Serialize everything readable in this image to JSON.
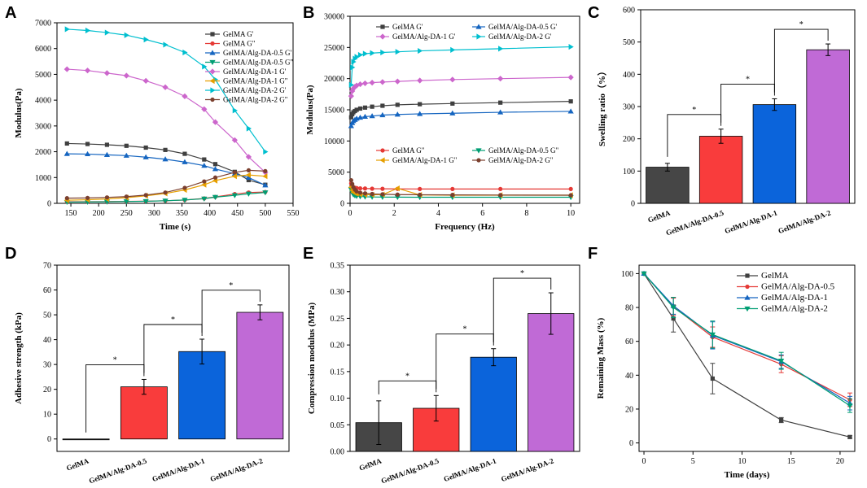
{
  "chart_data": [
    {
      "panel": "A",
      "type": "line",
      "xlabel": "Time (s)",
      "ylabel": "Modulus(Pa)",
      "xlim": [
        125,
        550
      ],
      "ylim": [
        0,
        7000
      ],
      "xticks": [
        150,
        200,
        250,
        300,
        350,
        400,
        450,
        500,
        550
      ],
      "yticks": [
        0,
        1000,
        2000,
        3000,
        4000,
        5000,
        6000,
        7000
      ],
      "x": [
        143,
        180,
        215,
        250,
        285,
        320,
        355,
        390,
        410,
        445,
        470,
        500
      ],
      "series": [
        {
          "name": "GelMA G'",
          "color": "#404040",
          "marker": "square",
          "values": [
            2320,
            2300,
            2270,
            2230,
            2160,
            2070,
            1920,
            1700,
            1520,
            1220,
            900,
            720
          ]
        },
        {
          "name": "GelMA G\"",
          "color": "#e53935",
          "marker": "circle",
          "values": [
            60,
            65,
            70,
            75,
            85,
            100,
            130,
            190,
            250,
            360,
            420,
            440
          ]
        },
        {
          "name": "GelMA/Alg-DA-0.5 G'",
          "color": "#1565c0",
          "marker": "triangle-up",
          "values": [
            1920,
            1910,
            1880,
            1850,
            1790,
            1710,
            1600,
            1460,
            1330,
            1150,
            1000,
            700
          ]
        },
        {
          "name": "GelMA/Alg-DA-0.5 G\"",
          "color": "#009e73",
          "marker": "triangle-down",
          "values": [
            50,
            55,
            60,
            70,
            80,
            100,
            130,
            180,
            240,
            310,
            370,
            420
          ]
        },
        {
          "name": "GelMA/Alg-DA-1 G'",
          "color": "#cc66cc",
          "marker": "diamond",
          "values": [
            5200,
            5150,
            5050,
            4950,
            4750,
            4500,
            4150,
            3650,
            3150,
            2450,
            1800,
            1200
          ]
        },
        {
          "name": "GelMA/Alg-DA-1 G\"",
          "color": "#e69f00",
          "marker": "triangle-left",
          "values": [
            120,
            140,
            170,
            220,
            290,
            380,
            520,
            720,
            880,
            1050,
            1100,
            1050
          ]
        },
        {
          "name": "GelMA/Alg-DA-2 G'",
          "color": "#00bfcf",
          "marker": "triangle-right",
          "values": [
            6750,
            6700,
            6620,
            6520,
            6350,
            6150,
            5850,
            5300,
            4800,
            3600,
            2900,
            2000
          ]
        },
        {
          "name": "GelMA/Alg-DA-2 G\"",
          "color": "#7b3f2e",
          "marker": "circle",
          "values": [
            200,
            210,
            230,
            260,
            320,
            420,
            600,
            850,
            1000,
            1200,
            1280,
            1250
          ]
        }
      ]
    },
    {
      "panel": "B",
      "type": "line",
      "xlabel": "Frequency (Hz)",
      "ylabel": "Modulus(Pa)",
      "xlim": [
        0,
        10.4
      ],
      "ylim": [
        0,
        30000
      ],
      "xticks": [
        0,
        2,
        4,
        6,
        8,
        10
      ],
      "yticks": [
        0,
        5000,
        10000,
        15000,
        20000,
        25000,
        30000
      ],
      "x": [
        0.05,
        0.1,
        0.15,
        0.22,
        0.3,
        0.46,
        0.68,
        1.0,
        1.47,
        2.15,
        3.16,
        4.64,
        6.81,
        10.0
      ],
      "series": [
        {
          "name": "GelMA G'",
          "color": "#404040",
          "marker": "square",
          "values": [
            13800,
            14300,
            14600,
            14800,
            15000,
            15200,
            15350,
            15500,
            15650,
            15800,
            15900,
            16000,
            16150,
            16350
          ]
        },
        {
          "name": "GelMA/Alg-DA-0.5 G'",
          "color": "#1565c0",
          "marker": "triangle-up",
          "values": [
            12400,
            12900,
            13200,
            13400,
            13600,
            13750,
            13900,
            14000,
            14150,
            14250,
            14350,
            14450,
            14600,
            14750
          ]
        },
        {
          "name": "GelMA/Alg-DA-1 G'",
          "color": "#cc66cc",
          "marker": "diamond",
          "values": [
            17200,
            18000,
            18400,
            18700,
            18900,
            19100,
            19250,
            19350,
            19450,
            19550,
            19700,
            19850,
            20000,
            20200
          ]
        },
        {
          "name": "GelMA/Alg-DA-2 G'",
          "color": "#00bfcf",
          "marker": "triangle-right",
          "values": [
            19000,
            21800,
            22700,
            23200,
            23500,
            23800,
            24000,
            24100,
            24200,
            24300,
            24450,
            24600,
            24800,
            25100
          ]
        },
        {
          "name": "GelMA G\"",
          "color": "#e53935",
          "marker": "circle",
          "values": [
            3200,
            2800,
            2600,
            2500,
            2450,
            2400,
            2380,
            2350,
            2330,
            2320,
            2300,
            2300,
            2300,
            2300
          ]
        },
        {
          "name": "GelMA/Alg-DA-0.5 G\"",
          "color": "#009e73",
          "marker": "triangle-down",
          "values": [
            2200,
            1700,
            1400,
            1250,
            1150,
            1100,
            1050,
            1020,
            1000,
            990,
            980,
            980,
            980,
            980
          ]
        },
        {
          "name": "GelMA/Alg-DA-1 G\"",
          "color": "#e69f00",
          "marker": "triangle-left",
          "values": [
            2600,
            2100,
            1800,
            1650,
            1550,
            1450,
            1400,
            1380,
            1400,
            2400,
            1350,
            1300,
            1300,
            1300
          ]
        },
        {
          "name": "GelMA/Alg-DA-2 G\"",
          "color": "#7b3f2e",
          "marker": "circle",
          "values": [
            3700,
            3100,
            2600,
            2200,
            1900,
            1700,
            1600,
            1500,
            1450,
            1400,
            1380,
            1350,
            1330,
            1300
          ]
        }
      ],
      "legend_top": [
        "GelMA G'",
        "GelMA/Alg-DA-0.5 G'",
        "GelMA/Alg-DA-1 G'",
        "GelMA/Alg-DA-2 G'"
      ],
      "legend_bottom": [
        "GelMA G\"",
        "GelMA/Alg-DA-0.5 G\"",
        "GelMA/Alg-DA-1 G\"",
        "GelMA/Alg-DA-2 G\""
      ]
    },
    {
      "panel": "C",
      "type": "bar",
      "ylabel": "Swelling ratio（%）",
      "ylim": [
        0,
        600
      ],
      "yticks": [
        0,
        100,
        200,
        300,
        400,
        500,
        600
      ],
      "categories": [
        "GelMA",
        "GelMA/Alg-DA-0.5",
        "GelMA/Alg-DA-1",
        "GelMA/Alg-DA-2"
      ],
      "values": [
        112,
        208,
        306,
        476
      ],
      "errors": [
        12,
        22,
        18,
        18
      ],
      "colors": [
        "#464646",
        "#f93c3c",
        "#0b64db",
        "#c06ad6"
      ],
      "significance": [
        [
          0,
          1,
          "*"
        ],
        [
          1,
          2,
          "*"
        ],
        [
          2,
          3,
          "*"
        ]
      ]
    },
    {
      "panel": "D",
      "type": "bar",
      "ylabel": "Adhesive strength (kPa)",
      "ylim": [
        -5,
        70
      ],
      "yticks": [
        0,
        10,
        20,
        30,
        40,
        50,
        60,
        70
      ],
      "categories": [
        "GelMA",
        "GelMA/Alg-DA-0.5",
        "GelMA/Alg-DA-1",
        "GelMA/Alg-DA-2"
      ],
      "values": [
        0,
        21,
        35.2,
        51
      ],
      "errors": [
        0,
        3,
        5,
        3
      ],
      "colors": [
        "#464646",
        "#f93c3c",
        "#0b64db",
        "#c06ad6"
      ],
      "significance": [
        [
          0,
          1,
          "*"
        ],
        [
          1,
          2,
          "*"
        ],
        [
          2,
          3,
          "*"
        ]
      ]
    },
    {
      "panel": "E",
      "type": "bar",
      "ylabel": "Compression modulus (MPa)",
      "ylim": [
        0,
        0.35
      ],
      "yticks": [
        0.0,
        0.05,
        0.1,
        0.15,
        0.2,
        0.25,
        0.3,
        0.35
      ],
      "ytick_labels": [
        "0.00",
        "0.05",
        "0.10",
        "0.15",
        "0.20",
        "0.25",
        "0.30",
        "0.35"
      ],
      "categories": [
        "GelMA",
        "GelMA/Alg-DA-0.5",
        "GelMA/Alg-DA-1",
        "GelMA/Alg-DA-2"
      ],
      "values": [
        0.054,
        0.081,
        0.177,
        0.259
      ],
      "errors": [
        0.041,
        0.024,
        0.016,
        0.039
      ],
      "colors": [
        "#464646",
        "#f93c3c",
        "#0b64db",
        "#c06ad6"
      ],
      "significance": [
        [
          0,
          1,
          "*"
        ],
        [
          1,
          2,
          "*"
        ],
        [
          2,
          3,
          "*"
        ]
      ]
    },
    {
      "panel": "F",
      "type": "line",
      "xlabel": "Time (days)",
      "ylabel": "Remaining Mass (%)",
      "xlim": [
        -0.5,
        21.5
      ],
      "ylim": [
        -5,
        105
      ],
      "xticks": [
        0,
        5,
        10,
        15,
        20
      ],
      "yticks": [
        0,
        20,
        40,
        60,
        80,
        100
      ],
      "x": [
        0,
        3,
        7,
        14,
        21
      ],
      "series": [
        {
          "name": "GelMA",
          "color": "#404040",
          "marker": "square",
          "values": [
            100,
            73.5,
            38,
            13.5,
            3.5
          ],
          "errors": [
            0,
            8,
            9,
            1.5,
            0.8
          ]
        },
        {
          "name": "GelMA/Alg-DA-0.5",
          "color": "#e53935",
          "marker": "circle",
          "values": [
            100,
            80.5,
            62.5,
            46.5,
            25.5
          ],
          "errors": [
            0,
            5,
            6,
            5,
            4
          ]
        },
        {
          "name": "GelMA/Alg-DA-1",
          "color": "#1565c0",
          "marker": "triangle-up",
          "values": [
            100,
            81,
            63.5,
            48,
            23.5
          ],
          "errors": [
            0,
            5,
            8,
            4,
            4
          ]
        },
        {
          "name": "GelMA/Alg-DA-2",
          "color": "#009e73",
          "marker": "triangle-down",
          "values": [
            100,
            80,
            64,
            48.5,
            22
          ],
          "errors": [
            0,
            6,
            8,
            5,
            4
          ]
        }
      ]
    }
  ]
}
